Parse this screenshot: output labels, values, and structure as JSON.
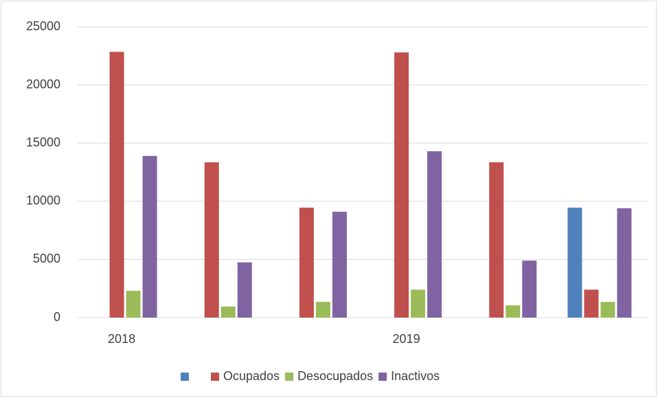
{
  "chart_data": {
    "type": "bar",
    "categories": [
      "2018",
      null,
      null,
      "2019",
      null,
      null
    ],
    "series": [
      {
        "name": null,
        "color": "#4f81bd",
        "values": [
          null,
          null,
          null,
          null,
          null,
          9450
        ]
      },
      {
        "name": "Ocupados",
        "color": "#c0504d",
        "values": [
          22850,
          13350,
          9450,
          22800,
          13350,
          2400
        ]
      },
      {
        "name": "Desocupados",
        "color": "#9bbb59",
        "values": [
          2300,
          950,
          1350,
          2400,
          1050,
          1350
        ]
      },
      {
        "name": "Inactivos",
        "color": "#8064a2",
        "values": [
          13900,
          4750,
          9100,
          14300,
          4900,
          9400
        ]
      }
    ],
    "ylim": [
      0,
      25000
    ],
    "yticks": [
      0,
      5000,
      10000,
      15000,
      20000,
      25000
    ],
    "grid": true,
    "legend": "bottom"
  }
}
